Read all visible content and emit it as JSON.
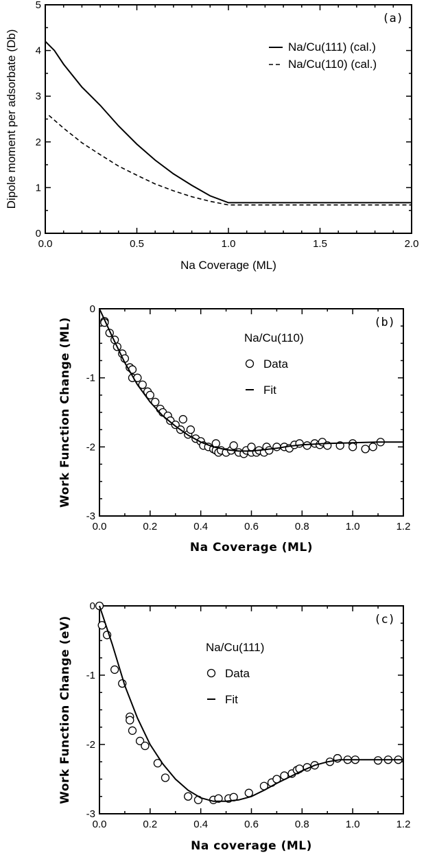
{
  "chart_data": [
    {
      "id": "a",
      "type": "line",
      "panel_label": "(a)",
      "xlabel": "Na Coverage (ML)",
      "ylabel": "Dipole moment per adsorbate (Db)",
      "xlim": [
        0,
        2
      ],
      "ylim": [
        0,
        5
      ],
      "xticks": [
        "0.0",
        "0.5",
        "1.0",
        "1.5",
        "2.0"
      ],
      "yticks": [
        "0",
        "1",
        "2",
        "3",
        "4",
        "5"
      ],
      "legend_position": "upper-right",
      "series": [
        {
          "name": "Na/Cu(111) (cal.)",
          "style": "solid",
          "x": [
            0,
            0.05,
            0.1,
            0.2,
            0.3,
            0.4,
            0.5,
            0.6,
            0.7,
            0.8,
            0.9,
            1.0,
            1.5,
            2.0
          ],
          "y": [
            4.2,
            4.0,
            3.7,
            3.2,
            2.8,
            2.35,
            1.95,
            1.6,
            1.3,
            1.05,
            0.82,
            0.67,
            0.67,
            0.67
          ]
        },
        {
          "name": "Na/Cu(110) (cal.)",
          "style": "dashed",
          "x": [
            0.02,
            0.1,
            0.2,
            0.3,
            0.4,
            0.5,
            0.6,
            0.7,
            0.8,
            0.9,
            1.0,
            1.5,
            2.0
          ],
          "y": [
            2.58,
            2.3,
            1.98,
            1.72,
            1.47,
            1.27,
            1.08,
            0.93,
            0.8,
            0.7,
            0.62,
            0.62,
            0.62
          ]
        }
      ]
    },
    {
      "id": "b",
      "type": "scatter",
      "panel_label": "(b)",
      "xlabel": "Na Coverage (ML)",
      "ylabel": "Work Function Change (ML)",
      "xlim": [
        0,
        1.2
      ],
      "ylim": [
        -3,
        0
      ],
      "xticks": [
        "0.0",
        "0.2",
        "0.4",
        "0.6",
        "0.8",
        "1.0",
        "1.2"
      ],
      "yticks": [
        "0",
        "-1",
        "-2",
        "-3"
      ],
      "legend_title": "Na/Cu(110)",
      "legend_position": "upper-right",
      "series": [
        {
          "name": "Data",
          "style": "marker",
          "x": [
            0.02,
            0.02,
            0.04,
            0.06,
            0.07,
            0.09,
            0.1,
            0.12,
            0.13,
            0.13,
            0.15,
            0.17,
            0.19,
            0.2,
            0.22,
            0.24,
            0.25,
            0.27,
            0.28,
            0.3,
            0.32,
            0.33,
            0.35,
            0.36,
            0.38,
            0.4,
            0.41,
            0.43,
            0.45,
            0.46,
            0.46,
            0.47,
            0.48,
            0.5,
            0.52,
            0.53,
            0.55,
            0.57,
            0.58,
            0.6,
            0.6,
            0.62,
            0.63,
            0.65,
            0.66,
            0.67,
            0.7,
            0.73,
            0.75,
            0.77,
            0.79,
            0.82,
            0.85,
            0.87,
            0.88,
            0.9,
            0.95,
            1.0,
            1.0,
            1.05,
            1.08,
            1.11
          ],
          "y": [
            -0.18,
            -0.2,
            -0.35,
            -0.45,
            -0.55,
            -0.65,
            -0.72,
            -0.85,
            -0.88,
            -1.0,
            -1.0,
            -1.1,
            -1.2,
            -1.25,
            -1.35,
            -1.45,
            -1.5,
            -1.55,
            -1.62,
            -1.68,
            -1.75,
            -1.6,
            -1.82,
            -1.75,
            -1.88,
            -1.92,
            -1.98,
            -2.0,
            -2.03,
            -1.95,
            -2.05,
            -2.08,
            -2.05,
            -2.08,
            -2.05,
            -1.98,
            -2.08,
            -2.1,
            -2.05,
            -2.08,
            -2.0,
            -2.08,
            -2.05,
            -2.08,
            -2.0,
            -2.05,
            -2.0,
            -2.0,
            -2.02,
            -1.97,
            -1.95,
            -1.98,
            -1.95,
            -1.97,
            -1.93,
            -1.98,
            -1.98,
            -1.95,
            -2.0,
            -2.03,
            -2.0,
            -1.93
          ]
        },
        {
          "name": "Fit",
          "style": "solid",
          "x": [
            0,
            0.05,
            0.1,
            0.15,
            0.2,
            0.25,
            0.3,
            0.35,
            0.4,
            0.45,
            0.5,
            0.55,
            0.6,
            0.65,
            0.7,
            0.75,
            0.8,
            0.9,
            1.0,
            1.1,
            1.2
          ],
          "y": [
            0,
            -0.4,
            -0.78,
            -1.1,
            -1.35,
            -1.55,
            -1.7,
            -1.83,
            -1.93,
            -2.0,
            -2.04,
            -2.06,
            -2.06,
            -2.04,
            -2.02,
            -1.99,
            -1.97,
            -1.95,
            -1.94,
            -1.93,
            -1.93
          ]
        }
      ]
    },
    {
      "id": "c",
      "type": "scatter",
      "panel_label": "(c)",
      "xlabel": "Na coverage (ML)",
      "ylabel": "Work Function Change (eV)",
      "xlim": [
        0,
        1.2
      ],
      "ylim": [
        -3,
        0
      ],
      "xticks": [
        "0.0",
        "0.2",
        "0.4",
        "0.6",
        "0.8",
        "1.0",
        "1.2"
      ],
      "yticks": [
        "0",
        "-1",
        "-2",
        "-3"
      ],
      "legend_title": "Na/Cu(111)",
      "legend_position": "upper-center",
      "series": [
        {
          "name": "Data",
          "style": "marker",
          "x": [
            0.0,
            0.01,
            0.03,
            0.06,
            0.09,
            0.12,
            0.12,
            0.13,
            0.16,
            0.18,
            0.23,
            0.26,
            0.35,
            0.39,
            0.45,
            0.47,
            0.51,
            0.53,
            0.59,
            0.65,
            0.68,
            0.7,
            0.73,
            0.76,
            0.78,
            0.79,
            0.82,
            0.85,
            0.91,
            0.94,
            0.94,
            0.98,
            1.01,
            1.1,
            1.14,
            1.18
          ],
          "y": [
            0.0,
            -0.28,
            -0.42,
            -0.92,
            -1.12,
            -1.6,
            -1.65,
            -1.8,
            -1.95,
            -2.02,
            -2.27,
            -2.48,
            -2.75,
            -2.8,
            -2.8,
            -2.78,
            -2.78,
            -2.76,
            -2.7,
            -2.6,
            -2.55,
            -2.5,
            -2.45,
            -2.42,
            -2.37,
            -2.35,
            -2.33,
            -2.3,
            -2.25,
            -2.2,
            -2.2,
            -2.22,
            -2.22,
            -2.23,
            -2.22,
            -2.22
          ]
        },
        {
          "name": "Fit",
          "style": "solid",
          "x": [
            0,
            0.05,
            0.1,
            0.15,
            0.2,
            0.25,
            0.3,
            0.35,
            0.4,
            0.45,
            0.5,
            0.55,
            0.6,
            0.65,
            0.7,
            0.75,
            0.8,
            0.85,
            0.9,
            0.95,
            1.0,
            1.1,
            1.2
          ],
          "y": [
            0,
            -0.55,
            -1.15,
            -1.62,
            -2.0,
            -2.28,
            -2.5,
            -2.66,
            -2.77,
            -2.82,
            -2.82,
            -2.8,
            -2.75,
            -2.66,
            -2.56,
            -2.47,
            -2.38,
            -2.3,
            -2.25,
            -2.22,
            -2.22,
            -2.22,
            -2.22
          ]
        }
      ]
    }
  ]
}
